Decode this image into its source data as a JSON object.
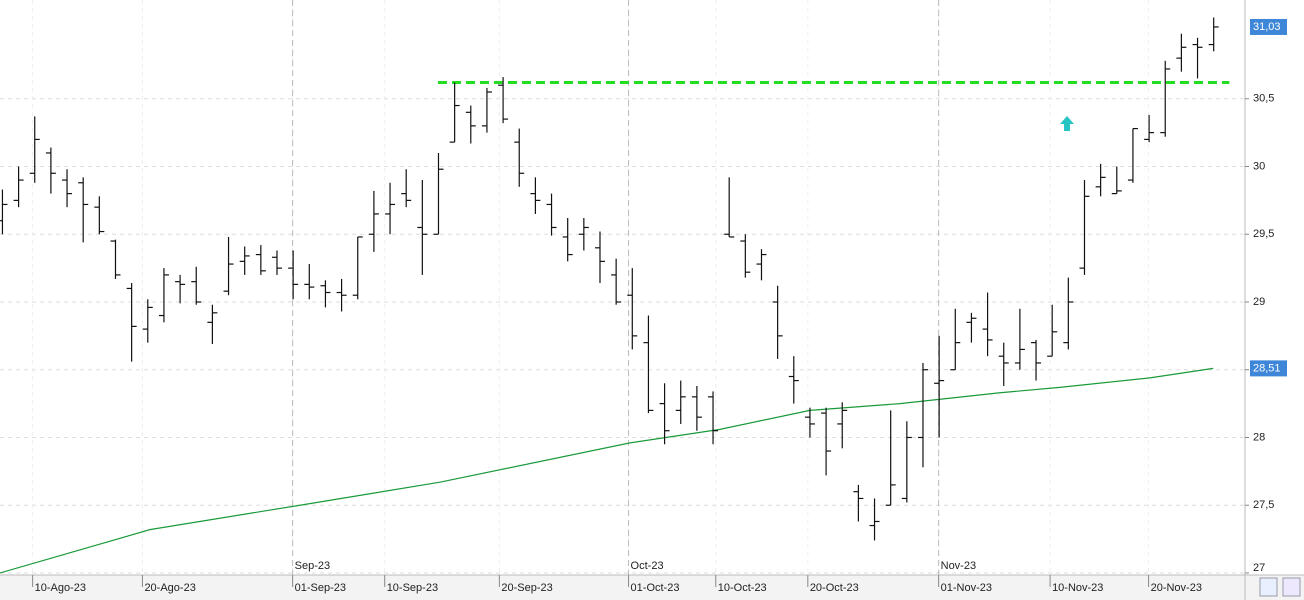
{
  "chart_data": {
    "type": "ohlc",
    "ylim": [
      26.985,
      31.229
    ],
    "yticks": [
      27,
      {
        "value": 27.5,
        "label": "27,5"
      },
      28,
      {
        "value": 28.5,
        "label": "28,5"
      },
      29,
      {
        "value": 29.5,
        "label": "29,5"
      },
      30,
      {
        "value": 30.5,
        "label": "30,5"
      }
    ],
    "xlim": [
      -0.12,
      76.97
    ],
    "xticks": [
      {
        "value": 1.9,
        "label": "10-Ago-23"
      },
      {
        "value": 8.7,
        "label": "20-Ago-23"
      },
      {
        "value": 18.0,
        "label": "01-Sep-23"
      },
      {
        "value": 23.7,
        "label": "10-Sep-23"
      },
      {
        "value": 30.8,
        "label": "20-Sep-23"
      },
      {
        "value": 38.8,
        "label": "01-Oct-23"
      },
      {
        "value": 44.2,
        "label": "10-Oct-23"
      },
      {
        "value": 49.9,
        "label": "20-Oct-23"
      },
      {
        "value": 58.0,
        "label": "01-Nov-23"
      },
      {
        "value": 64.9,
        "label": "10-Nov-23"
      },
      {
        "value": 71.0,
        "label": "20-Nov-23"
      }
    ],
    "month_lines": [
      {
        "value": 18.0,
        "label": "Sep-23"
      },
      {
        "value": 38.8,
        "label": "Oct-23"
      },
      {
        "value": 58.0,
        "label": "Nov-23"
      }
    ],
    "ohlc": [
      [
        29.6,
        29.83,
        29.5,
        29.72
      ],
      [
        29.75,
        30.0,
        29.7,
        29.9
      ],
      [
        29.95,
        30.37,
        29.88,
        30.2
      ],
      [
        30.1,
        30.14,
        29.8,
        29.95
      ],
      [
        29.9,
        29.98,
        29.7,
        29.8
      ],
      [
        29.88,
        29.92,
        29.44,
        29.72
      ],
      [
        29.7,
        29.78,
        29.5,
        29.52
      ],
      [
        29.45,
        29.46,
        29.17,
        29.2
      ],
      [
        29.1,
        29.14,
        28.56,
        28.82
      ],
      [
        28.8,
        29.02,
        28.7,
        28.96
      ],
      [
        28.9,
        29.25,
        28.85,
        29.2
      ],
      [
        29.15,
        29.2,
        28.99,
        29.13
      ],
      [
        29.15,
        29.26,
        28.98,
        29.0
      ],
      [
        28.85,
        28.98,
        28.69,
        28.92
      ],
      [
        29.08,
        29.48,
        29.05,
        29.28
      ],
      [
        29.3,
        29.41,
        29.2,
        29.34
      ],
      [
        29.35,
        29.42,
        29.2,
        29.23
      ],
      [
        29.33,
        29.38,
        29.2,
        29.25
      ],
      [
        29.25,
        29.38,
        29.02,
        29.13
      ],
      [
        29.13,
        29.28,
        29.02,
        29.11
      ],
      [
        29.12,
        29.16,
        28.96,
        29.07
      ],
      [
        29.07,
        29.17,
        28.93,
        29.05
      ],
      [
        29.05,
        29.48,
        29.02,
        29.48
      ],
      [
        29.5,
        29.82,
        29.37,
        29.65
      ],
      [
        29.65,
        29.88,
        29.5,
        29.72
      ],
      [
        29.8,
        29.98,
        29.7,
        29.75
      ],
      [
        29.55,
        29.9,
        29.2,
        29.5
      ],
      [
        29.5,
        30.1,
        29.5,
        29.98
      ],
      [
        30.18,
        30.62,
        30.18,
        30.45
      ],
      [
        30.4,
        30.45,
        30.17,
        30.3
      ],
      [
        30.3,
        30.58,
        30.25,
        30.55
      ],
      [
        30.6,
        30.66,
        30.32,
        30.35
      ],
      [
        30.18,
        30.28,
        29.85,
        29.95
      ],
      [
        29.8,
        29.92,
        29.65,
        29.75
      ],
      [
        29.72,
        29.8,
        29.49,
        29.55
      ],
      [
        29.48,
        29.62,
        29.3,
        29.35
      ],
      [
        29.5,
        29.62,
        29.38,
        29.55
      ],
      [
        29.4,
        29.52,
        29.14,
        29.3
      ],
      [
        29.2,
        29.32,
        28.98,
        29.0
      ],
      [
        29.05,
        29.25,
        28.65,
        28.75
      ],
      [
        28.7,
        28.9,
        28.18,
        28.2
      ],
      [
        28.25,
        28.4,
        27.95,
        28.05
      ],
      [
        28.2,
        28.42,
        28.1,
        28.3
      ],
      [
        28.3,
        28.38,
        28.05,
        28.15
      ],
      [
        28.3,
        28.34,
        27.95,
        28.05
      ],
      [
        29.5,
        29.92,
        29.48,
        29.48
      ],
      [
        29.45,
        29.5,
        29.18,
        29.22
      ],
      [
        29.28,
        29.39,
        29.16,
        29.35
      ],
      [
        29.0,
        29.12,
        28.58,
        28.75
      ],
      [
        28.45,
        28.6,
        28.25,
        28.42
      ],
      [
        28.15,
        28.22,
        28.0,
        28.1
      ],
      [
        28.18,
        28.22,
        27.72,
        27.9
      ],
      [
        28.1,
        28.26,
        27.92,
        28.2
      ],
      [
        27.6,
        27.65,
        27.38,
        27.55
      ],
      [
        27.35,
        27.55,
        27.24,
        27.38
      ],
      [
        27.5,
        28.2,
        27.5,
        27.65
      ],
      [
        27.55,
        28.12,
        27.52,
        28.0
      ],
      [
        28.0,
        28.55,
        27.78,
        28.5
      ],
      [
        28.4,
        28.75,
        28.0,
        28.42
      ],
      [
        28.5,
        28.95,
        28.5,
        28.7
      ],
      [
        28.85,
        28.92,
        28.7,
        28.88
      ],
      [
        28.8,
        29.07,
        28.6,
        28.72
      ],
      [
        28.6,
        28.7,
        28.38,
        28.55
      ],
      [
        28.55,
        28.95,
        28.5,
        28.65
      ],
      [
        28.7,
        28.72,
        28.42,
        28.55
      ],
      [
        28.6,
        28.98,
        28.6,
        28.78
      ],
      [
        28.7,
        29.18,
        28.65,
        29.0
      ],
      [
        29.25,
        29.9,
        29.2,
        29.78
      ],
      [
        29.85,
        30.02,
        29.78,
        29.92
      ],
      [
        29.8,
        30.0,
        29.8,
        29.82
      ],
      [
        29.9,
        30.28,
        29.88,
        30.28
      ],
      [
        30.2,
        30.38,
        30.18,
        30.25
      ],
      [
        30.25,
        30.78,
        30.22,
        30.72
      ],
      [
        30.8,
        30.98,
        30.7,
        30.88
      ],
      [
        30.9,
        30.95,
        30.65,
        30.88
      ],
      [
        30.9,
        31.1,
        30.85,
        31.03
      ]
    ],
    "last_price": {
      "value": 31.03,
      "label": "31,03"
    },
    "moving_average": {
      "color": "#1a9a3a",
      "x": [
        -0.12,
        9.16,
        18.45,
        27.12,
        38.89,
        44.46,
        50.03,
        55.6,
        61.8,
        65.5,
        71.08,
        75
      ],
      "values": [
        27.0,
        27.32,
        27.5,
        27.67,
        27.96,
        28.06,
        28.2,
        28.25,
        28.33,
        28.37,
        28.44,
        28.51
      ],
      "last": {
        "value": 28.51,
        "label": "28,51"
      }
    },
    "resistance": {
      "value": 30.62,
      "x": [
        27,
        76
      ],
      "color": "#22dd22"
    },
    "bar_color": "#111111",
    "tag_color": "#3d86d8",
    "grid": true
  }
}
